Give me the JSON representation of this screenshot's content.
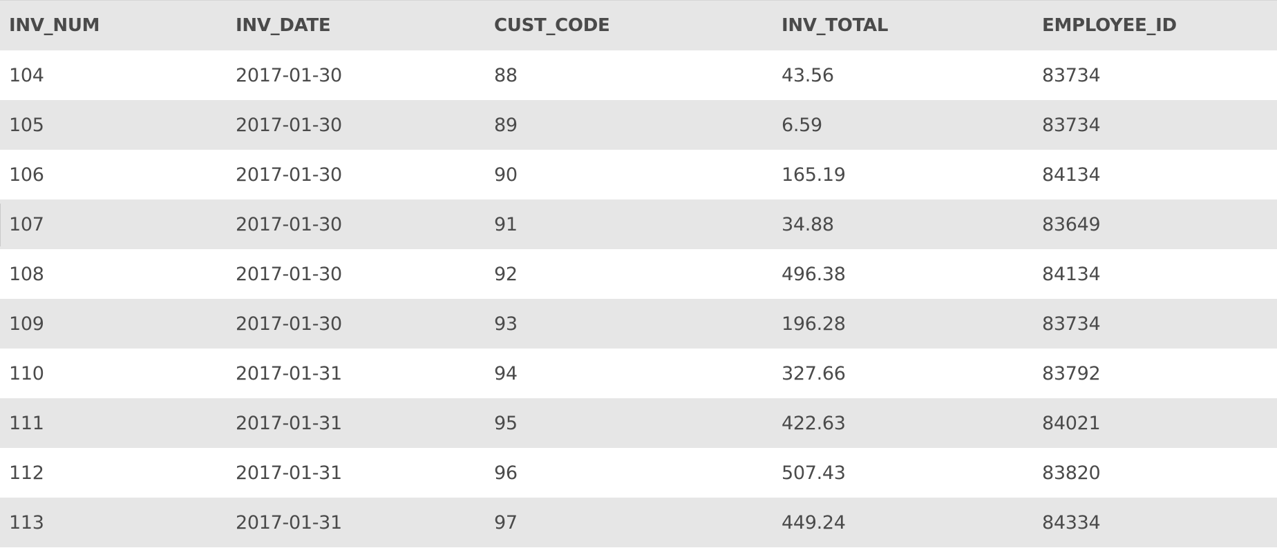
{
  "table": {
    "columns": [
      "INV_NUM",
      "INV_DATE",
      "CUST_CODE",
      "INV_TOTAL",
      "EMPLOYEE_ID"
    ],
    "rows": [
      [
        "104",
        "2017-01-30",
        "88",
        "43.56",
        "83734"
      ],
      [
        "105",
        "2017-01-30",
        "89",
        "6.59",
        "83734"
      ],
      [
        "106",
        "2017-01-30",
        "90",
        "165.19",
        "84134"
      ],
      [
        "107",
        "2017-01-30",
        "91",
        "34.88",
        "83649"
      ],
      [
        "108",
        "2017-01-30",
        "92",
        "496.38",
        "84134"
      ],
      [
        "109",
        "2017-01-30",
        "93",
        "196.28",
        "83734"
      ],
      [
        "110",
        "2017-01-31",
        "94",
        "327.66",
        "83792"
      ],
      [
        "111",
        "2017-01-31",
        "95",
        "422.63",
        "84021"
      ],
      [
        "112",
        "2017-01-31",
        "96",
        "507.43",
        "83820"
      ],
      [
        "113",
        "2017-01-31",
        "97",
        "449.24",
        "84334"
      ]
    ]
  },
  "colors": {
    "header_bg": "#e6e6e6",
    "stripe_bg": "#e6e6e6",
    "row_bg": "#ffffff",
    "text": "#4a4a4a"
  }
}
